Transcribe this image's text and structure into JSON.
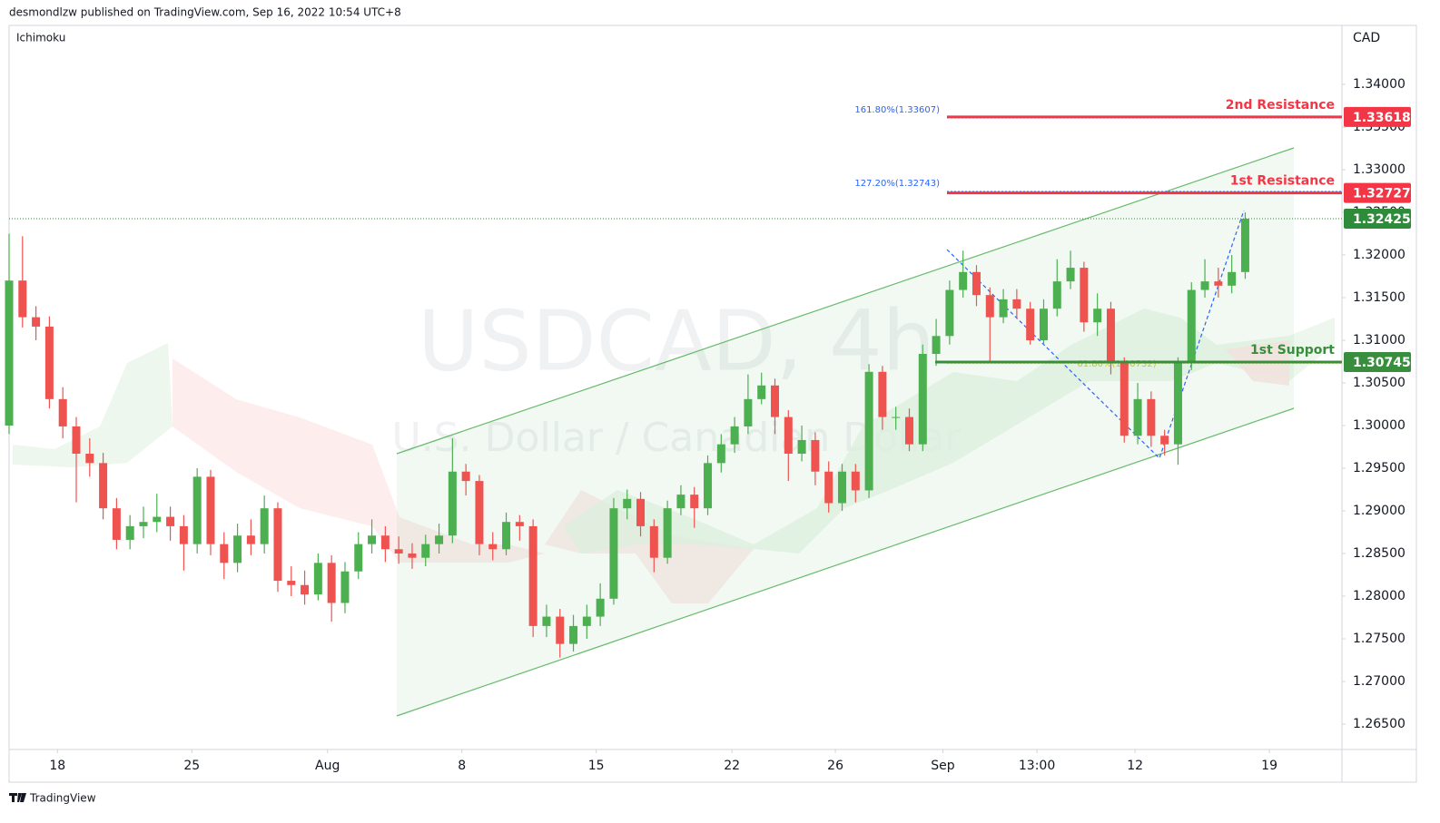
{
  "header": {
    "published": "desmondlzw published on TradingView.com, Sep 16, 2022 10:54 UTC+8"
  },
  "footer": {
    "brand": "TradingView"
  },
  "chart_data": {
    "type": "candlestick",
    "title": "USDCAD, 4h",
    "subtitle": "U.S. Dollar / Canadian Dollar",
    "indicator": "Ichimoku",
    "currency": "CAD",
    "up_color": "#4caf50",
    "down_color": "#ef5350",
    "x": [
      0,
      1,
      2,
      3,
      4,
      5,
      6,
      7,
      8,
      9,
      10,
      11,
      12,
      13,
      14,
      15,
      16,
      17,
      18,
      19,
      20,
      21,
      22,
      23,
      24,
      25,
      26,
      27,
      28,
      29,
      30,
      31,
      32,
      33,
      34,
      35,
      36,
      37,
      38,
      39,
      40,
      41,
      42,
      43,
      44,
      45,
      46,
      47,
      48,
      49,
      50,
      51,
      52,
      53,
      54,
      55,
      56,
      57,
      58,
      59,
      60,
      61,
      62,
      63,
      64,
      65,
      66,
      67,
      68,
      69,
      70,
      71,
      72,
      73,
      74,
      75,
      76,
      77,
      78,
      79,
      80,
      81,
      82,
      83,
      84,
      85,
      86,
      87,
      88,
      89,
      90,
      91,
      92
    ],
    "open": [
      1.3,
      1.317,
      1.3127,
      1.3116,
      1.3031,
      1.2999,
      1.2967,
      1.2956,
      1.2903,
      1.2866,
      1.2882,
      1.2887,
      1.2893,
      1.2882,
      1.2861,
      1.294,
      1.2861,
      1.2839,
      1.2871,
      1.2861,
      1.2903,
      1.2818,
      1.2813,
      1.2802,
      1.2839,
      1.2792,
      1.2829,
      1.2861,
      1.2871,
      1.2855,
      1.285,
      1.2845,
      1.2861,
      1.2871,
      1.2946,
      1.2935,
      1.2861,
      1.2855,
      1.2887,
      1.2882,
      1.2765,
      1.2776,
      1.2744,
      1.2765,
      1.2776,
      1.2797,
      1.2903,
      1.2914,
      1.2882,
      1.2845,
      1.2903,
      1.2919,
      1.2903,
      1.2956,
      1.2978,
      1.2999,
      1.3031,
      1.3047,
      1.301,
      1.2967,
      1.2983,
      1.2946,
      1.2909,
      1.2946,
      1.2924,
      1.3063,
      1.301,
      1.301,
      1.2978,
      1.3084,
      1.3105,
      1.3159,
      1.318,
      1.3153,
      1.3127,
      1.3148,
      1.3137,
      1.31,
      1.3137,
      1.3169,
      1.3185,
      1.3121,
      1.3137,
      1.3073,
      1.2988,
      1.3031,
      1.2988,
      1.2978,
      1.3073,
      1.3159,
      1.3169,
      1.3164,
      1.318
    ],
    "high": [
      1.3225,
      1.3222,
      1.314,
      1.3128,
      1.3045,
      1.301,
      1.2985,
      1.2968,
      1.2915,
      1.2895,
      1.2905,
      1.292,
      1.2905,
      1.2895,
      1.295,
      1.2948,
      1.2875,
      1.2885,
      1.289,
      1.2918,
      1.291,
      1.2835,
      1.283,
      1.285,
      1.2848,
      1.284,
      1.2875,
      1.289,
      1.2882,
      1.287,
      1.2862,
      1.2872,
      1.2885,
      1.2985,
      1.2955,
      1.2942,
      1.2875,
      1.2898,
      1.2895,
      1.289,
      1.279,
      1.2785,
      1.2778,
      1.279,
      1.2815,
      1.2915,
      1.2925,
      1.2922,
      1.289,
      1.2912,
      1.293,
      1.2928,
      1.2965,
      1.299,
      1.301,
      1.306,
      1.3062,
      1.3055,
      1.3018,
      1.3,
      1.2992,
      1.2958,
      1.2955,
      1.2955,
      1.3072,
      1.307,
      1.3022,
      1.302,
      1.3095,
      1.3125,
      1.317,
      1.3205,
      1.3188,
      1.3162,
      1.316,
      1.316,
      1.3145,
      1.3148,
      1.3195,
      1.3205,
      1.3192,
      1.3155,
      1.3145,
      1.308,
      1.305,
      1.304,
      1.2995,
      1.308,
      1.3168,
      1.3195,
      1.3185,
      1.32,
      1.325
    ],
    "low": [
      1.299,
      1.3115,
      1.31,
      1.302,
      1.2985,
      1.291,
      1.294,
      1.289,
      1.2855,
      1.2855,
      1.2868,
      1.2875,
      1.2865,
      1.283,
      1.285,
      1.2848,
      1.282,
      1.2828,
      1.2848,
      1.285,
      1.2805,
      1.28,
      1.279,
      1.2795,
      1.277,
      1.278,
      1.282,
      1.285,
      1.284,
      1.2838,
      1.2832,
      1.2835,
      1.285,
      1.2862,
      1.2918,
      1.2848,
      1.2842,
      1.2848,
      1.2865,
      1.2752,
      1.2752,
      1.2728,
      1.2735,
      1.275,
      1.2765,
      1.279,
      1.289,
      1.287,
      1.2828,
      1.2838,
      1.2895,
      1.288,
      1.2895,
      1.2945,
      1.2968,
      1.299,
      1.3025,
      1.299,
      1.2935,
      1.2958,
      1.293,
      1.2898,
      1.29,
      1.291,
      1.2915,
      1.2995,
      1.2995,
      1.297,
      1.297,
      1.307,
      1.3095,
      1.315,
      1.314,
      1.3075,
      1.312,
      1.3125,
      1.3095,
      1.3095,
      1.3128,
      1.316,
      1.311,
      1.3105,
      1.306,
      1.298,
      1.2978,
      1.2975,
      1.2965,
      1.2954,
      1.3065,
      1.315,
      1.315,
      1.3155,
      1.3172
    ],
    "close": [
      1.317,
      1.3127,
      1.3116,
      1.3031,
      1.2999,
      1.2967,
      1.2956,
      1.2903,
      1.2866,
      1.2882,
      1.2887,
      1.2893,
      1.2882,
      1.2861,
      1.294,
      1.2861,
      1.2839,
      1.2871,
      1.2861,
      1.2903,
      1.2818,
      1.2813,
      1.2802,
      1.2839,
      1.2792,
      1.2829,
      1.2861,
      1.2871,
      1.2855,
      1.285,
      1.2845,
      1.2861,
      1.2871,
      1.2946,
      1.2935,
      1.2861,
      1.2855,
      1.2887,
      1.2882,
      1.2765,
      1.2776,
      1.2744,
      1.2765,
      1.2776,
      1.2797,
      1.2903,
      1.2914,
      1.2882,
      1.2845,
      1.2903,
      1.2919,
      1.2903,
      1.2956,
      1.2978,
      1.2999,
      1.3031,
      1.3047,
      1.301,
      1.2967,
      1.2983,
      1.2946,
      1.2909,
      1.2946,
      1.2924,
      1.3063,
      1.301,
      1.301,
      1.2978,
      1.3084,
      1.3105,
      1.3159,
      1.318,
      1.3153,
      1.3127,
      1.3148,
      1.3137,
      1.31,
      1.3137,
      1.3169,
      1.3185,
      1.3121,
      1.3137,
      1.3073,
      1.2988,
      1.3031,
      1.2988,
      1.2978,
      1.3073,
      1.3159,
      1.3169,
      1.3164,
      1.318,
      1.32425
    ],
    "xlim": [
      0,
      99.2
    ],
    "xticks": [
      {
        "value": 3.6,
        "label": "18"
      },
      {
        "value": 13.6,
        "label": "25"
      },
      {
        "value": 23.7,
        "label": "Aug"
      },
      {
        "value": 33.7,
        "label": "8"
      },
      {
        "value": 43.7,
        "label": "15"
      },
      {
        "value": 53.8,
        "label": "22"
      },
      {
        "value": 61.5,
        "label": "26"
      },
      {
        "value": 69.5,
        "label": "Sep"
      },
      {
        "value": 76.5,
        "label": "13:00"
      },
      {
        "value": 83.8,
        "label": "12"
      },
      {
        "value": 93.8,
        "label": "19"
      }
    ],
    "ylim": [
      1.26202,
      1.3467
    ],
    "yticks": [
      {
        "value": 1.34,
        "label": "1.34000"
      },
      {
        "value": 1.335,
        "label": "1.33500"
      },
      {
        "value": 1.33,
        "label": "1.33000"
      },
      {
        "value": 1.325,
        "label": "1.32500"
      },
      {
        "value": 1.32,
        "label": "1.32000"
      },
      {
        "value": 1.315,
        "label": "1.31500"
      },
      {
        "value": 1.31,
        "label": "1.31000"
      },
      {
        "value": 1.305,
        "label": "1.30500"
      },
      {
        "value": 1.3,
        "label": "1.30000"
      },
      {
        "value": 1.295,
        "label": "1.29500"
      },
      {
        "value": 1.29,
        "label": "1.29000"
      },
      {
        "value": 1.285,
        "label": "1.28500"
      },
      {
        "value": 1.28,
        "label": "1.28000"
      },
      {
        "value": 1.275,
        "label": "1.27500"
      },
      {
        "value": 1.27,
        "label": "1.27000"
      },
      {
        "value": 1.265,
        "label": "1.26500"
      }
    ],
    "last_price": 1.32425,
    "last_price_color": "#2e8b3a",
    "levels": [
      {
        "name": "2nd Resistance",
        "value": 1.33618,
        "color": "#f23645"
      },
      {
        "name": "1st Resistance",
        "value": 1.32727,
        "color": "#f23645"
      },
      {
        "name": "1st Support",
        "value": 1.30745,
        "color": "#388e3c"
      }
    ],
    "fib_levels": [
      {
        "label": "161.80%(1.33607)",
        "value": 1.33607,
        "color": "#2962ff"
      },
      {
        "label": "127.20%(1.32743)",
        "value": 1.32743,
        "color": "#2962ff"
      },
      {
        "label": "61.80%(1.30732)",
        "value": 1.30732,
        "color": "#d4c21a"
      }
    ]
  }
}
